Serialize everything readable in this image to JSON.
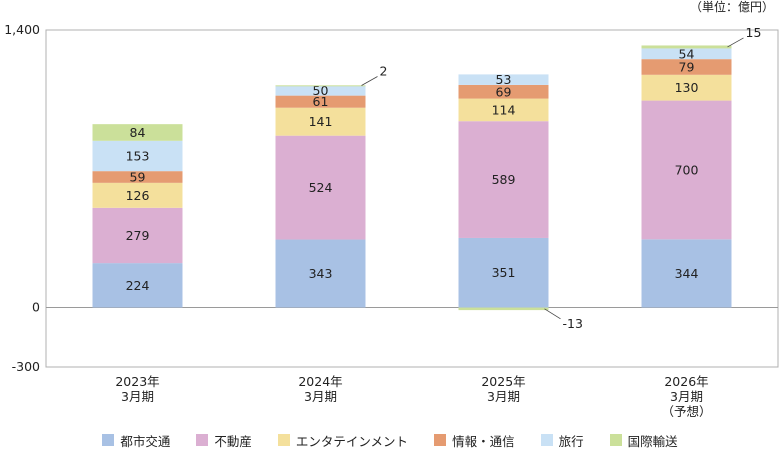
{
  "unit": "（単位：億円）",
  "chart_data": {
    "type": "bar",
    "stacked": true,
    "categories": [
      [
        "2023年",
        "3月期"
      ],
      [
        "2024年",
        "3月期"
      ],
      [
        "2025年",
        "3月期"
      ],
      [
        "2026年",
        "3月期",
        "（予想）"
      ]
    ],
    "ylim": [
      -300,
      1400
    ],
    "yticks": [
      "1,400",
      "0",
      "-300"
    ],
    "ytick_values": [
      1400,
      0,
      -300
    ],
    "grid": false,
    "legend_position": "bottom",
    "series": [
      {
        "name": "都市交通",
        "color": "#a8c1e4",
        "values": [
          224,
          343,
          351,
          344
        ]
      },
      {
        "name": "不動産",
        "color": "#dbafd2",
        "values": [
          279,
          524,
          589,
          700
        ]
      },
      {
        "name": "エンタテインメント",
        "color": "#f4e09c",
        "values": [
          126,
          141,
          114,
          130
        ]
      },
      {
        "name": "情報・通信",
        "color": "#e59b71",
        "values": [
          59,
          61,
          69,
          79
        ]
      },
      {
        "name": "旅行",
        "color": "#c9e1f5",
        "values": [
          153,
          50,
          53,
          54
        ]
      },
      {
        "name": "国際輸送",
        "color": "#cbe09a",
        "values": [
          84,
          2,
          -13,
          15
        ]
      }
    ]
  }
}
